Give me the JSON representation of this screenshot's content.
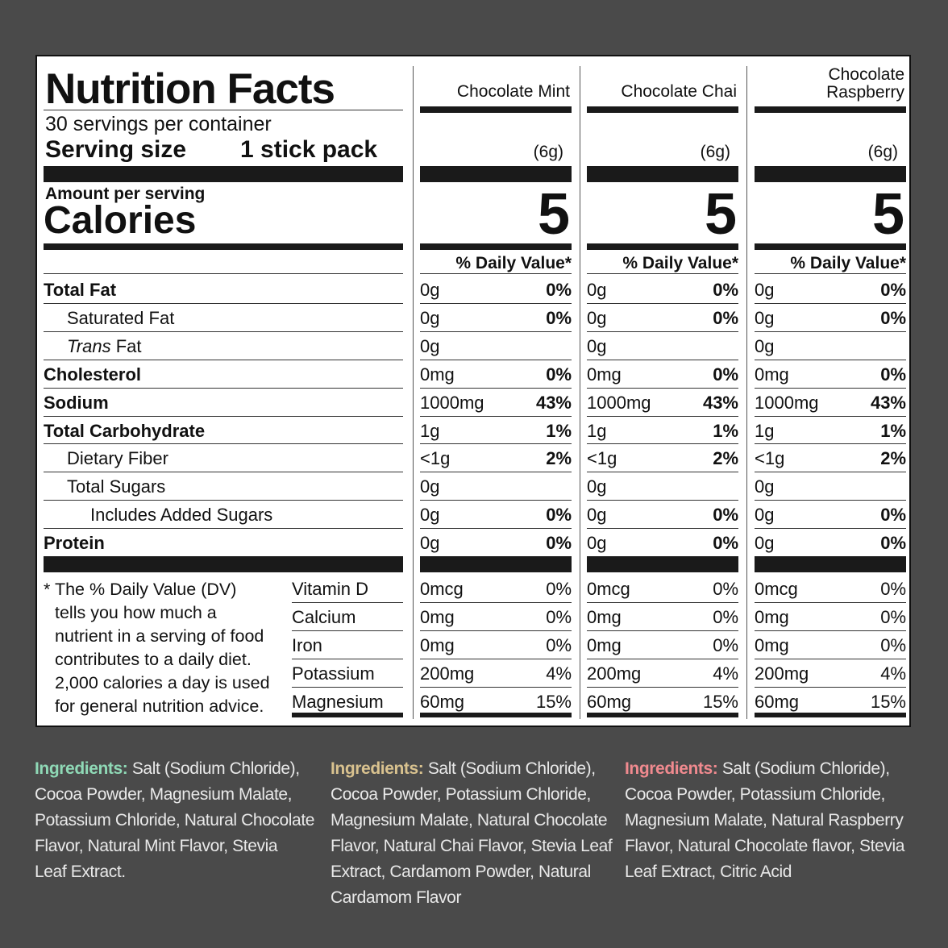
{
  "title": "Nutrition Facts",
  "servings": "30 servings per container",
  "serving_size_label": "Serving size",
  "serving_size_value": "1 stick pack",
  "amount_per_serving": "Amount per serving",
  "calories_label": "Calories",
  "dv_header": "% Daily Value*",
  "products": [
    {
      "name": "Chocolate Mint",
      "size": "(6g)",
      "calories": "5"
    },
    {
      "name": "Chocolate Chai",
      "size": "(6g)",
      "calories": "5"
    },
    {
      "name": "Chocolate\nRaspberry",
      "size": "(6g)",
      "calories": "5"
    }
  ],
  "nutrients": [
    {
      "label": "Total Fat",
      "bold": true,
      "indent": 0,
      "value": "0g",
      "dv": "0%"
    },
    {
      "label": "Saturated Fat",
      "bold": false,
      "indent": 1,
      "value": "0g",
      "dv": "0%"
    },
    {
      "label": "Fat",
      "italic_prefix": "Trans",
      "bold": false,
      "indent": 1,
      "value": "0g",
      "dv": ""
    },
    {
      "label": "Cholesterol",
      "bold": true,
      "indent": 0,
      "value": "0mg",
      "dv": "0%"
    },
    {
      "label": "Sodium",
      "bold": true,
      "indent": 0,
      "value": "1000mg",
      "dv": "43%"
    },
    {
      "label": "Total Carbohydrate",
      "bold": true,
      "indent": 0,
      "value": "1g",
      "dv": "1%"
    },
    {
      "label": "Dietary Fiber",
      "bold": false,
      "indent": 1,
      "value": "<1g",
      "dv": "2%"
    },
    {
      "label": "Total Sugars",
      "bold": false,
      "indent": 1,
      "value": "0g",
      "dv": ""
    },
    {
      "label": "Includes Added Sugars",
      "bold": false,
      "indent": 2,
      "value": "0g",
      "dv": "0%"
    },
    {
      "label": "Protein",
      "bold": true,
      "indent": 0,
      "value": "0g",
      "dv": "0%"
    }
  ],
  "footnote": "* The % Daily Value (DV) tells you how much a nutrient in a serving of food contributes to a daily diet. 2,000 calories a day is used for general nutrition advice.",
  "footnote_lines": [
    "* The % Daily Value (DV)",
    "tells you how much a",
    "nutrient in a serving of food",
    "contributes to a daily diet.",
    "2,000 calories a day is used",
    "for general nutrition advice."
  ],
  "minerals": [
    {
      "label": "Vitamin D",
      "value": "0mcg",
      "dv": "0%"
    },
    {
      "label": "Calcium",
      "value": "0mg",
      "dv": "0%"
    },
    {
      "label": "Iron",
      "value": "0mg",
      "dv": "0%"
    },
    {
      "label": "Potassium",
      "value": "200mg",
      "dv": "4%"
    },
    {
      "label": "Magnesium",
      "value": "60mg",
      "dv": "15%"
    }
  ],
  "ingredients": [
    {
      "label": "Ingredients:",
      "color": "#8fd9b6",
      "lines": [
        "Salt (Sodium Chloride),",
        "Cocoa Powder, Magnesium Malate,",
        "Potassium Chloride, Natural Chocolate",
        "Flavor, Natural Mint Flavor, Stevia",
        "Leaf Extract."
      ]
    },
    {
      "label": "Ingredients:",
      "color": "#d9c28f",
      "lines": [
        "Salt (Sodium Chloride),",
        "Cocoa Powder, Potassium Chloride,",
        "Magnesium Malate, Natural Chocolate",
        "Flavor, Natural Chai Flavor, Stevia Leaf",
        "Extract, Cardamom Powder, Natural",
        "Cardamom Flavor"
      ]
    },
    {
      "label": "Ingredients:",
      "color": "#f08a8f",
      "lines": [
        "Salt (Sodium Chloride),",
        "Cocoa Powder, Potassium Chloride,",
        "Magnesium Malate, Natural Raspberry",
        "Flavor, Natural Chocolate flavor, Stevia",
        "Leaf Extract, Citric Acid"
      ]
    }
  ]
}
